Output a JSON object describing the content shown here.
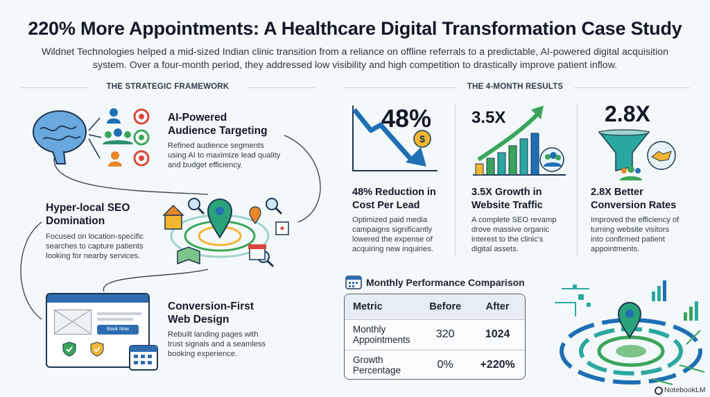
{
  "header": {
    "title": "220% More Appointments: A Healthcare Digital Transformation Case Study",
    "subtitle_line1": "Wildnet Technologies helped a mid-sized Indian clinic transition from a reliance on offline referrals to a predictable, AI-powered digital acquisition",
    "subtitle_line2": "system. Over a four-month period, they addressed low visibility and high competition to drastically improve patient inflow."
  },
  "framework": {
    "section_label": "THE STRATEGIC FRAMEWORK",
    "features": [
      {
        "title_line1": "AI-Powered",
        "title_line2": "Audience Targeting",
        "desc_line1": "Refined audience segments",
        "desc_line2": "using AI to maximize lead quality",
        "desc_line3": "and budget efficiency."
      },
      {
        "title_line1": "Hyper-local SEO",
        "title_line2": "Domination",
        "desc_line1": "Focused on location-specific",
        "desc_line2": "searches to capture patients",
        "desc_line3": "looking for nearby services."
      },
      {
        "title_line1": "Conversion-First",
        "title_line2": "Web Design",
        "desc_line1": "Rebuilt landing pages with",
        "desc_line2": "trust signals and a seamless",
        "desc_line3": "booking experience."
      }
    ],
    "book_now_label": "Book Now"
  },
  "results": {
    "section_label": "THE 4-MONTH RESULTS",
    "cards": [
      {
        "value": "48%",
        "title_line1": "48% Reduction in",
        "title_line2": "Cost Per Lead",
        "desc_line1": "Optimized paid media",
        "desc_line2": "campaigns significantly",
        "desc_line3": "lowered the expense of",
        "desc_line4": "acquiring new inquiries."
      },
      {
        "value": "3.5X",
        "title_line1": "3.5X Growth in",
        "title_line2": "Website Traffic",
        "desc_line1": "A complete SEO revamp",
        "desc_line2": "drove massive organic",
        "desc_line3": "interest to the clinic's",
        "desc_line4": "digital assets."
      },
      {
        "value": "2.8X",
        "title_line1": "2.8X Better",
        "title_line2": "Conversion Rates",
        "desc_line1": "Improved the efficiency of",
        "desc_line2": "turning website visitors",
        "desc_line3": "into confirmed patient",
        "desc_line4": "appointments."
      }
    ]
  },
  "comparison": {
    "title": "Monthly Performance Comparison",
    "headers": [
      "Metric",
      "Before",
      "After"
    ],
    "rows": [
      {
        "metric_line1": "Monthly",
        "metric_line2": "Appointments",
        "before": "320",
        "after": "1024"
      },
      {
        "metric_line1": "Growth",
        "metric_line2": "Percentage",
        "before": "0%",
        "after": "+220%"
      }
    ]
  },
  "footer": {
    "brand": "NotebookLM"
  },
  "colors": {
    "accent_blue": "#1f6fb5",
    "accent_green": "#3aa55a",
    "accent_orange": "#e8862a",
    "accent_red": "#d9473c",
    "accent_yellow": "#f2b632",
    "accent_teal": "#2aa8a0"
  }
}
